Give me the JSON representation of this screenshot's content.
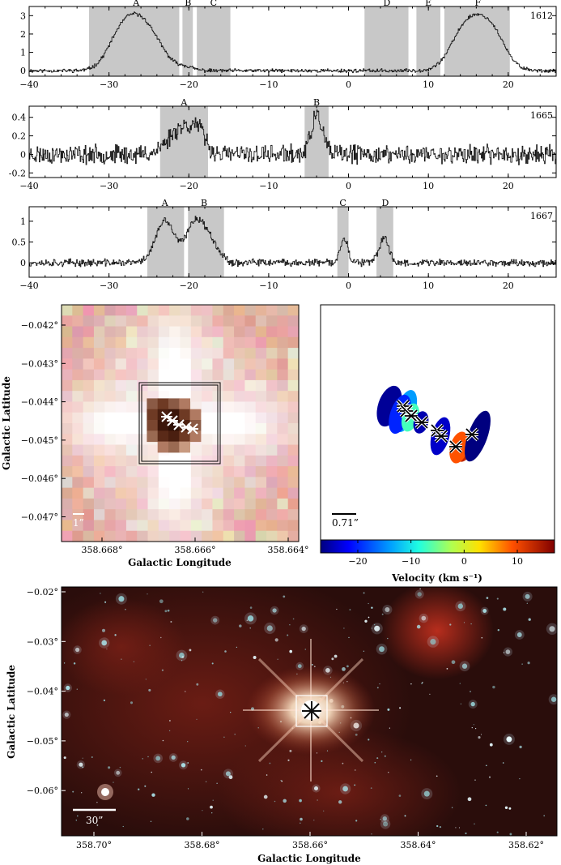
{
  "chart_data": [
    {
      "type": "line",
      "id": "spec1612",
      "corner_label": "1612",
      "xlim": [
        -40,
        26
      ],
      "ylim": [
        -0.3,
        3.5
      ],
      "xticks": [
        -40,
        -30,
        -20,
        -10,
        0,
        10,
        20
      ],
      "yticks": [
        0,
        1,
        2,
        3
      ],
      "ytick_labels": [
        "0",
        "1",
        "2",
        "3"
      ],
      "regions": [
        {
          "label": "A",
          "from": -32.5,
          "to": -21.2,
          "label_x": -26.6
        },
        {
          "label": "B",
          "from": -20.8,
          "to": -19.5,
          "label_x": -20.1
        },
        {
          "label": "C",
          "from": -19.0,
          "to": -14.8,
          "label_x": -16.9
        },
        {
          "label": "D",
          "from": 2.0,
          "to": 7.5,
          "label_x": 4.8
        },
        {
          "label": "E",
          "from": 8.5,
          "to": 11.5,
          "label_x": 10.0
        },
        {
          "label": "F",
          "from": 12.0,
          "to": 20.2,
          "label_x": 16.2
        }
      ],
      "peaks": [
        {
          "center": -26.6,
          "width": 2.2,
          "height": 2.8
        },
        {
          "center": -29.0,
          "width": 1.5,
          "height": 0.7
        },
        {
          "center": -24.0,
          "width": 1.5,
          "height": 0.4
        },
        {
          "center": -20.5,
          "width": 1.0,
          "height": 0.2
        },
        {
          "center": 16.2,
          "width": 2.3,
          "height": 2.8
        },
        {
          "center": 13.8,
          "width": 1.5,
          "height": 0.6
        },
        {
          "center": 18.5,
          "width": 1.3,
          "height": 0.5
        }
      ],
      "noise": 0.08,
      "seed": 11
    },
    {
      "type": "line",
      "id": "spec1665",
      "corner_label": "1665",
      "xlim": [
        -40,
        26
      ],
      "ylim": [
        -0.25,
        0.52
      ],
      "xticks": [
        -40,
        -30,
        -20,
        -10,
        0,
        10,
        20
      ],
      "yticks": [
        -0.2,
        0,
        0.2,
        0.4
      ],
      "ytick_labels": [
        "-0.2",
        "0",
        "0.2",
        "0.4"
      ],
      "regions": [
        {
          "label": "A",
          "from": -23.6,
          "to": -17.6,
          "label_x": -20.6
        },
        {
          "label": "B",
          "from": -5.5,
          "to": -2.5,
          "label_x": -4.0
        }
      ],
      "peaks": [
        {
          "center": -20.8,
          "width": 1.7,
          "height": 0.3
        },
        {
          "center": -18.8,
          "width": 0.8,
          "height": 0.15
        },
        {
          "center": -4.0,
          "width": 0.7,
          "height": 0.42
        }
      ],
      "noise": 0.08,
      "seed": 23
    },
    {
      "type": "line",
      "id": "spec1667",
      "corner_label": "1667",
      "xlim": [
        -40,
        26
      ],
      "ylim": [
        -0.35,
        1.35
      ],
      "xticks": [
        -40,
        -30,
        -20,
        -10,
        0,
        10,
        20
      ],
      "yticks": [
        0,
        0.5,
        1
      ],
      "ytick_labels": [
        "0",
        "0.5",
        "1"
      ],
      "regions": [
        {
          "label": "A",
          "from": -25.2,
          "to": -20.6,
          "label_x": -23.0
        },
        {
          "label": "B",
          "from": -20.1,
          "to": -15.6,
          "label_x": -18.1
        },
        {
          "label": "C",
          "from": -1.4,
          "to": 0.0,
          "label_x": -0.7
        },
        {
          "label": "D",
          "from": 3.5,
          "to": 5.6,
          "label_x": 4.6
        }
      ],
      "peaks": [
        {
          "center": -23.0,
          "width": 1.2,
          "height": 1.0
        },
        {
          "center": -19.2,
          "width": 1.1,
          "height": 1.0
        },
        {
          "center": -17.2,
          "width": 1.0,
          "height": 0.45
        },
        {
          "center": -0.6,
          "width": 0.45,
          "height": 0.62
        },
        {
          "center": 4.4,
          "width": 0.6,
          "height": 0.6
        }
      ],
      "noise": 0.07,
      "seed": 37
    }
  ],
  "panel_left": {
    "ytick_labels": [
      "−0.042°",
      "−0.043°",
      "−0.044°",
      "−0.045°",
      "−0.046°",
      "−0.047°"
    ],
    "xtick_labels": [
      "358.668°",
      "358.666°",
      "358.664°"
    ],
    "xlabel": "Galactic Longitude",
    "ylabel": "Galactic Latitude",
    "scale_bar": "1”"
  },
  "panel_right": {
    "scale_bar": "0.71”",
    "colorbar": {
      "range": [
        -27,
        17
      ],
      "ticks": [
        -20,
        -10,
        0,
        10
      ],
      "tick_labels": [
        "−20",
        "−10",
        "0",
        "10"
      ],
      "label": "Velocity (km s⁻¹)"
    },
    "spots": [
      {
        "velocity": -26,
        "ring": "black"
      },
      {
        "velocity": -14,
        "ring": "black"
      },
      {
        "velocity": -20,
        "ring": "black"
      },
      {
        "velocity": -7,
        "ring": "black"
      },
      {
        "velocity": -25,
        "ring": "black"
      },
      {
        "velocity": -24,
        "ring": "black"
      },
      {
        "velocity": 13,
        "ring": "black"
      },
      {
        "velocity": 9,
        "ring": "black"
      },
      {
        "velocity": -27,
        "ring": "black"
      }
    ]
  },
  "panel_bottom": {
    "ytick_labels": [
      "−0.02°",
      "−0.03°",
      "−0.04°",
      "−0.05°",
      "−0.06°"
    ],
    "xtick_labels": [
      "358.70°",
      "358.68°",
      "358.66°",
      "358.64°",
      "358.62°"
    ],
    "xlabel": "Galactic Longitude",
    "ylabel": "Galactic Latitude",
    "scale_bar": "30”"
  },
  "colors": {
    "region_fill": "#c8c8c8",
    "line": "#111111",
    "sky_bg": "#2a0d0b",
    "star_color": "#bfe8ee"
  }
}
